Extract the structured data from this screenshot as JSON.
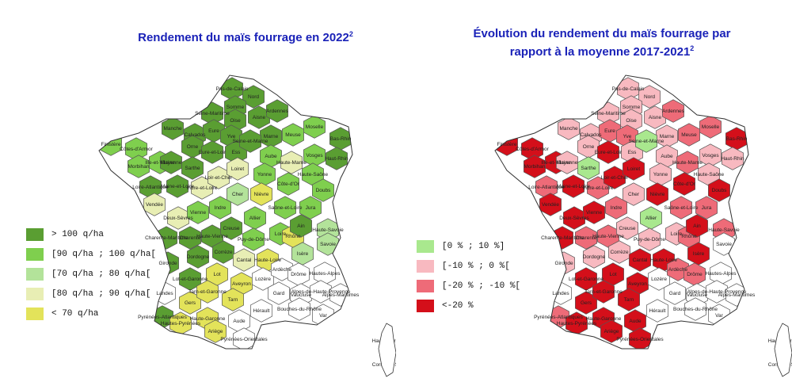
{
  "left_panel": {
    "title": "Rendement du maïs fourrage en 2022",
    "title_sup": "2",
    "legend": [
      {
        "label": "> 100 q/ha",
        "color": "#5a9e32"
      },
      {
        "label": "[90 q/ha ; 100 q/ha[",
        "color": "#7fcf4e"
      },
      {
        "label": "[70 q/ha ; 80 q/ha[",
        "color": "#b3e39a"
      },
      {
        "label": "[80 q/ha ; 90 q/ha[",
        "color": "#e8eeb4"
      },
      {
        "label": "< 70 q/ha",
        "color": "#e3e35a"
      }
    ]
  },
  "right_panel": {
    "title_line1": "Évolution du rendement du maïs fourrage par",
    "title_line2": "rapport à la moyenne 2017-2021",
    "title_sup": "2",
    "legend": [
      {
        "label": "[0 % ; 10 %]",
        "color": "#a9e88e"
      },
      {
        "label": "[-10 % ; 0 %[",
        "color": "#f8b9c0"
      },
      {
        "label": "[-20 % ; -10 %[",
        "color": "#ee6b78"
      },
      {
        "label": "<-20 %",
        "color": "#d40f1a"
      }
    ]
  },
  "colors": {
    "no_data": "#ffffff",
    "border": "#555555",
    "title": "#1a22b8"
  },
  "departments_left": [
    {
      "name": "Pas-de-Calais",
      "cls": 0
    },
    {
      "name": "Nord",
      "cls": 0
    },
    {
      "name": "Somme",
      "cls": 0
    },
    {
      "name": "Seine-Maritime",
      "cls": 0
    },
    {
      "name": "Oise",
      "cls": 0
    },
    {
      "name": "Aisne",
      "cls": 0
    },
    {
      "name": "Ardennes",
      "cls": 0
    },
    {
      "name": "Manche",
      "cls": 0
    },
    {
      "name": "Calvados",
      "cls": 0
    },
    {
      "name": "Eure",
      "cls": 0
    },
    {
      "name": "Marne",
      "cls": 0
    },
    {
      "name": "Meuse",
      "cls": 1
    },
    {
      "name": "Moselle",
      "cls": 1
    },
    {
      "name": "Bas-Rhin",
      "cls": 0
    },
    {
      "name": "Finistère",
      "cls": 1
    },
    {
      "name": "Côtes-d'Armor",
      "cls": 1
    },
    {
      "name": "Ille-et-Vilaine",
      "cls": 1
    },
    {
      "name": "Orne",
      "cls": 0
    },
    {
      "name": "Mayenne",
      "cls": 0
    },
    {
      "name": "Sarthe",
      "cls": 0
    },
    {
      "name": "Eure-et-Loir",
      "cls": 0
    },
    {
      "name": "Yvelines",
      "cls": 0
    },
    {
      "name": "Essonne",
      "cls": 0
    },
    {
      "name": "Seine-et-Marne",
      "cls": 0
    },
    {
      "name": "Aube",
      "cls": 1
    },
    {
      "name": "Haute-Marne",
      "cls": 3
    },
    {
      "name": "Vosges",
      "cls": 1
    },
    {
      "name": "Haut-Rhin",
      "cls": 0
    },
    {
      "name": "Morbihan",
      "cls": 1
    },
    {
      "name": "Loire-Atlantique",
      "cls": 0
    },
    {
      "name": "Maine-et-Loire",
      "cls": 0
    },
    {
      "name": "Indre-et-Loire",
      "cls": 3
    },
    {
      "name": "Loir-et-Cher",
      "cls": 3
    },
    {
      "name": "Loiret",
      "cls": 3
    },
    {
      "name": "Yonne",
      "cls": 1
    },
    {
      "name": "Côte-d'Or",
      "cls": 1
    },
    {
      "name": "Haute-Saône",
      "cls": 1
    },
    {
      "name": "Doubs",
      "cls": 1
    },
    {
      "name": "Vendée",
      "cls": 3
    },
    {
      "name": "Deux-Sèvres",
      "cls": 3
    },
    {
      "name": "Vienne",
      "cls": 1
    },
    {
      "name": "Indre",
      "cls": 1
    },
    {
      "name": "Cher",
      "cls": 2
    },
    {
      "name": "Nièvre",
      "cls": 4
    },
    {
      "name": "Saône-et-Loire",
      "cls": 1
    },
    {
      "name": "Jura",
      "cls": 1
    },
    {
      "name": "Charente-Maritime",
      "cls": 0
    },
    {
      "name": "Charente",
      "cls": 0
    },
    {
      "name": "Haute-Vienne",
      "cls": 0
    },
    {
      "name": "Creuse",
      "cls": 0
    },
    {
      "name": "Allier",
      "cls": 1
    },
    {
      "name": "Loire",
      "cls": 1
    },
    {
      "name": "Rhône",
      "cls": 4
    },
    {
      "name": "Ain",
      "cls": 0
    },
    {
      "name": "Haute-Savoie",
      "cls": 2
    },
    {
      "name": "Savoie",
      "cls": 2
    },
    {
      "name": "Gironde",
      "cls": 0
    },
    {
      "name": "Dordogne",
      "cls": 0
    },
    {
      "name": "Corrèze",
      "cls": 0
    },
    {
      "name": "Puy-de-Dôme",
      "cls": 1
    },
    {
      "name": "Cantal",
      "cls": 3
    },
    {
      "name": "Haute-Loire",
      "cls": 4
    },
    {
      "name": "Isère",
      "cls": 2
    },
    {
      "name": "Landes",
      "cls": -1
    },
    {
      "name": "Lot-et-Garonne",
      "cls": 0
    },
    {
      "name": "Lot",
      "cls": 4
    },
    {
      "name": "Aveyron",
      "cls": 4
    },
    {
      "name": "Lozère",
      "cls": -1
    },
    {
      "name": "Ardèche",
      "cls": -1
    },
    {
      "name": "Drôme",
      "cls": -1
    },
    {
      "name": "Hautes-Alpes",
      "cls": -1
    },
    {
      "name": "Pyrénées-Atlantiques",
      "cls": 0
    },
    {
      "name": "Gers",
      "cls": 4
    },
    {
      "name": "Tarn-et-Garonne",
      "cls": 4
    },
    {
      "name": "Tarn",
      "cls": 4
    },
    {
      "name": "Gard",
      "cls": -1
    },
    {
      "name": "Vaucluse",
      "cls": -1
    },
    {
      "name": "Alpes-de-Haute-Provence",
      "cls": -1
    },
    {
      "name": "Alpes-Maritimes",
      "cls": -1
    },
    {
      "name": "Hautes-Pyrénées",
      "cls": 4
    },
    {
      "name": "Haute-Garonne",
      "cls": 4
    },
    {
      "name": "Ariège",
      "cls": 4
    },
    {
      "name": "Aude",
      "cls": -1
    },
    {
      "name": "Hérault",
      "cls": -1
    },
    {
      "name": "Bouches-du-Rhône",
      "cls": -1
    },
    {
      "name": "Var",
      "cls": -1
    },
    {
      "name": "Pyrénées-Orientales",
      "cls": -1
    },
    {
      "name": "Haute-Corse",
      "cls": -1
    },
    {
      "name": "Corse-du-Sud",
      "cls": -1
    }
  ],
  "departments_right": [
    {
      "name": "Pas-de-Calais",
      "cls": 1
    },
    {
      "name": "Nord",
      "cls": 1
    },
    {
      "name": "Somme",
      "cls": 1
    },
    {
      "name": "Seine-Maritime",
      "cls": 1
    },
    {
      "name": "Oise",
      "cls": 1
    },
    {
      "name": "Aisne",
      "cls": 1
    },
    {
      "name": "Ardennes",
      "cls": 2
    },
    {
      "name": "Manche",
      "cls": 1
    },
    {
      "name": "Calvados",
      "cls": 1
    },
    {
      "name": "Eure",
      "cls": 2
    },
    {
      "name": "Marne",
      "cls": 1
    },
    {
      "name": "Meuse",
      "cls": 2
    },
    {
      "name": "Moselle",
      "cls": 2
    },
    {
      "name": "Bas-Rhin",
      "cls": 3
    },
    {
      "name": "Finistère",
      "cls": 3
    },
    {
      "name": "Côtes-d'Armor",
      "cls": 3
    },
    {
      "name": "Ille-et-Vilaine",
      "cls": 3
    },
    {
      "name": "Orne",
      "cls": 1
    },
    {
      "name": "Mayenne",
      "cls": 1
    },
    {
      "name": "Sarthe",
      "cls": 0
    },
    {
      "name": "Eure-et-Loir",
      "cls": 3
    },
    {
      "name": "Yvelines",
      "cls": 2
    },
    {
      "name": "Essonne",
      "cls": 1
    },
    {
      "name": "Seine-et-Marne",
      "cls": 0
    },
    {
      "name": "Aube",
      "cls": 1
    },
    {
      "name": "Haute-Marne",
      "cls": 2
    },
    {
      "name": "Vosges",
      "cls": 1
    },
    {
      "name": "Haut-Rhin",
      "cls": 1
    },
    {
      "name": "Morbihan",
      "cls": 3
    },
    {
      "name": "Loire-Atlantique",
      "cls": 2
    },
    {
      "name": "Maine-et-Loire",
      "cls": 3
    },
    {
      "name": "Indre-et-Loire",
      "cls": 2
    },
    {
      "name": "Loir-et-Cher",
      "cls": 3
    },
    {
      "name": "Loiret",
      "cls": 3
    },
    {
      "name": "Yonne",
      "cls": 1
    },
    {
      "name": "Côte-d'Or",
      "cls": 3
    },
    {
      "name": "Haute-Saône",
      "cls": 1
    },
    {
      "name": "Doubs",
      "cls": 3
    },
    {
      "name": "Vendée",
      "cls": 3
    },
    {
      "name": "Deux-Sèvres",
      "cls": 3
    },
    {
      "name": "Vienne",
      "cls": 3
    },
    {
      "name": "Indre",
      "cls": 2
    },
    {
      "name": "Cher",
      "cls": 1
    },
    {
      "name": "Nièvre",
      "cls": 3
    },
    {
      "name": "Saône-et-Loire",
      "cls": 2
    },
    {
      "name": "Jura",
      "cls": 2
    },
    {
      "name": "Charente-Maritime",
      "cls": 3
    },
    {
      "name": "Charente",
      "cls": 2
    },
    {
      "name": "Haute-Vienne",
      "cls": 2
    },
    {
      "name": "Creuse",
      "cls": 1
    },
    {
      "name": "Allier",
      "cls": 0
    },
    {
      "name": "Loire",
      "cls": 1
    },
    {
      "name": "Rhône",
      "cls": 2
    },
    {
      "name": "Ain",
      "cls": 3
    },
    {
      "name": "Haute-Savoie",
      "cls": 2
    },
    {
      "name": "Savoie",
      "cls": -1
    },
    {
      "name": "Gironde",
      "cls": 1
    },
    {
      "name": "Dordogne",
      "cls": 1
    },
    {
      "name": "Corrèze",
      "cls": 1
    },
    {
      "name": "Puy-de-Dôme",
      "cls": 1
    },
    {
      "name": "Cantal",
      "cls": 3
    },
    {
      "name": "Haute-Loire",
      "cls": 3
    },
    {
      "name": "Isère",
      "cls": 3
    },
    {
      "name": "Landes",
      "cls": -1
    },
    {
      "name": "Lot-et-Garonne",
      "cls": 3
    },
    {
      "name": "Lot",
      "cls": 3
    },
    {
      "name": "Aveyron",
      "cls": 3
    },
    {
      "name": "Lozère",
      "cls": -1
    },
    {
      "name": "Ardèche",
      "cls": 2
    },
    {
      "name": "Drôme",
      "cls": 2
    },
    {
      "name": "Hautes-Alpes",
      "cls": -1
    },
    {
      "name": "Pyrénées-Atlantiques",
      "cls": 2
    },
    {
      "name": "Gers",
      "cls": 3
    },
    {
      "name": "Tarn-et-Garonne",
      "cls": 3
    },
    {
      "name": "Tarn",
      "cls": 3
    },
    {
      "name": "Gard",
      "cls": -1
    },
    {
      "name": "Vaucluse",
      "cls": -1
    },
    {
      "name": "Alpes-de-Haute-Provence",
      "cls": -1
    },
    {
      "name": "Alpes-Maritimes",
      "cls": -1
    },
    {
      "name": "Hautes-Pyrénées",
      "cls": 3
    },
    {
      "name": "Haute-Garonne",
      "cls": 3
    },
    {
      "name": "Ariège",
      "cls": 3
    },
    {
      "name": "Aude",
      "cls": 3
    },
    {
      "name": "Hérault",
      "cls": -1
    },
    {
      "name": "Bouches-du-Rhône",
      "cls": -1
    },
    {
      "name": "Var",
      "cls": -1
    },
    {
      "name": "Pyrénées-Orientales",
      "cls": 3
    },
    {
      "name": "Haute-Corse",
      "cls": -1
    },
    {
      "name": "Corse-du-Sud",
      "cls": -1
    }
  ]
}
